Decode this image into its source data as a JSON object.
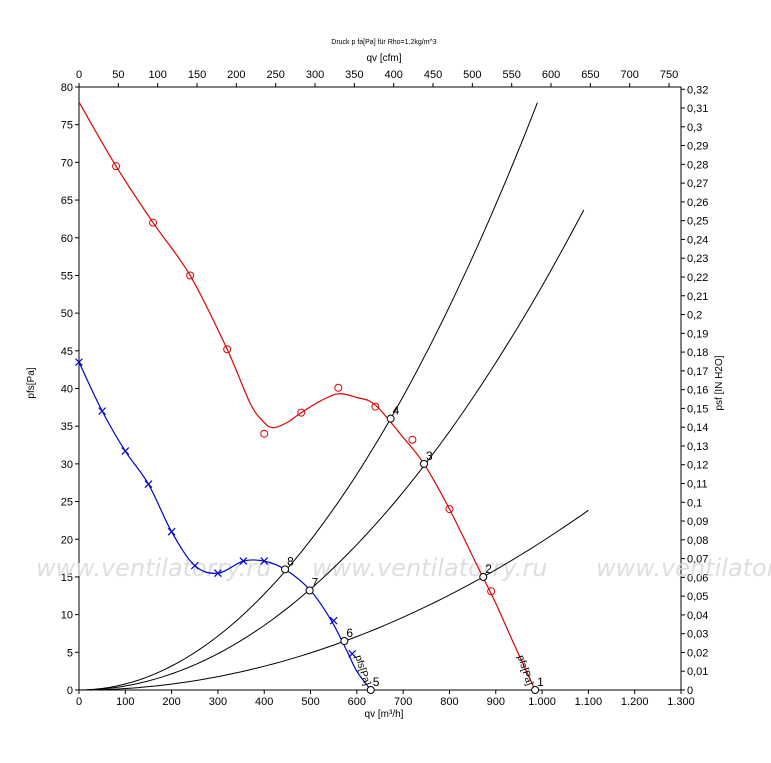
{
  "chart_data": {
    "type": "line",
    "title": "Druck p fa[Pa] für Rho=1,2kg/m^3",
    "xlabel": "qv [m³/h]",
    "x2label": "qv [cfm]",
    "ylabel": "pfs[Pa]",
    "y2label": "psf [IN H2O]",
    "xlim": [
      0,
      1300
    ],
    "ylim": [
      0,
      80
    ],
    "x2lim": [
      0,
      765.2
    ],
    "y2lim": [
      0,
      0.3212
    ],
    "x_ticks": [
      "0",
      "100",
      "200",
      "300",
      "400",
      "500",
      "600",
      "700",
      "800",
      "900",
      "1.000",
      "1.100",
      "1.200",
      "1.300"
    ],
    "y_ticks": [
      "0",
      "5",
      "10",
      "15",
      "20",
      "25",
      "30",
      "35",
      "40",
      "45",
      "50",
      "55",
      "60",
      "65",
      "70",
      "75",
      "80"
    ],
    "x2_ticks": [
      "0",
      "50",
      "100",
      "150",
      "200",
      "250",
      "300",
      "350",
      "400",
      "450",
      "500",
      "550",
      "600",
      "650",
      "700",
      "750"
    ],
    "y2_ticks": [
      "0",
      "0,01",
      "0,02",
      "0,03",
      "0,04",
      "0,05",
      "0,06",
      "0,07",
      "0,08",
      "0,09",
      "0,1",
      "0,11",
      "0,12",
      "0,13",
      "0,14",
      "0,15",
      "0,16",
      "0,17",
      "0,18",
      "0,19",
      "0,2",
      "0,21",
      "0,22",
      "0,23",
      "0,24",
      "0,25",
      "0,26",
      "0,27",
      "0,28",
      "0,29",
      "0,3",
      "0,31",
      "0,32"
    ],
    "grid": false,
    "watermark": "www.ventilatorry.ru",
    "series": [
      {
        "name": "pfs[Pa]",
        "color": "#e00000",
        "marker": "circle",
        "curve": [
          [
            0,
            78
          ],
          [
            80,
            69.5
          ],
          [
            160,
            62
          ],
          [
            240,
            55
          ],
          [
            320,
            45.2
          ],
          [
            370,
            38
          ],
          [
            400,
            35.5
          ],
          [
            420,
            34.8
          ],
          [
            450,
            35.5
          ],
          [
            480,
            36.8
          ],
          [
            520,
            38.3
          ],
          [
            560,
            39.3
          ],
          [
            600,
            38.8
          ],
          [
            640,
            37.8
          ],
          [
            700,
            33.5
          ],
          [
            745,
            30
          ],
          [
            800,
            24
          ],
          [
            860,
            16.5
          ],
          [
            900,
            11.5
          ],
          [
            940,
            6
          ],
          [
            985,
            0
          ]
        ],
        "markers": [
          [
            80,
            69.5
          ],
          [
            160,
            62
          ],
          [
            240,
            55
          ],
          [
            320,
            45.2
          ],
          [
            400,
            34
          ],
          [
            480,
            36.8
          ],
          [
            560,
            40.1
          ],
          [
            640,
            37.6
          ],
          [
            720,
            33.2
          ],
          [
            800,
            24
          ],
          [
            890,
            13.1
          ]
        ]
      },
      {
        "name": "pfs[Pa]",
        "color": "#0000cc",
        "marker": "x",
        "curve": [
          [
            0,
            43.5
          ],
          [
            50,
            37
          ],
          [
            100,
            31.7
          ],
          [
            150,
            27.3
          ],
          [
            200,
            21
          ],
          [
            250,
            16.5
          ],
          [
            300,
            15.5
          ],
          [
            355,
            17.1
          ],
          [
            400,
            17.1
          ],
          [
            445,
            16
          ],
          [
            500,
            13.2
          ],
          [
            545,
            9.2
          ],
          [
            580,
            5
          ],
          [
            600,
            2.5
          ],
          [
            630,
            0
          ]
        ],
        "markers": [
          [
            0,
            43.5
          ],
          [
            50,
            37
          ],
          [
            100,
            31.7
          ],
          [
            150,
            27.3
          ],
          [
            200,
            21
          ],
          [
            250,
            16.5
          ],
          [
            300,
            15.5
          ],
          [
            355,
            17.1
          ],
          [
            400,
            17.1
          ],
          [
            550,
            9.2
          ],
          [
            590,
            4.8
          ]
        ]
      }
    ],
    "system_curves": [
      {
        "k": 7.95e-05,
        "x_max": 990
      },
      {
        "k": 5.36e-05,
        "x_max": 1090
      },
      {
        "k": 1.97e-05,
        "x_max": 1100
      }
    ],
    "operating_points": [
      {
        "label": "1",
        "x": 985,
        "y": 0
      },
      {
        "label": "2",
        "x": 873,
        "y": 15
      },
      {
        "label": "3",
        "x": 745,
        "y": 30
      },
      {
        "label": "4",
        "x": 673,
        "y": 36
      },
      {
        "label": "5",
        "x": 630,
        "y": 0
      },
      {
        "label": "6",
        "x": 573,
        "y": 6.5
      },
      {
        "label": "7",
        "x": 498,
        "y": 13.2
      },
      {
        "label": "8",
        "x": 445,
        "y": 16
      }
    ]
  }
}
